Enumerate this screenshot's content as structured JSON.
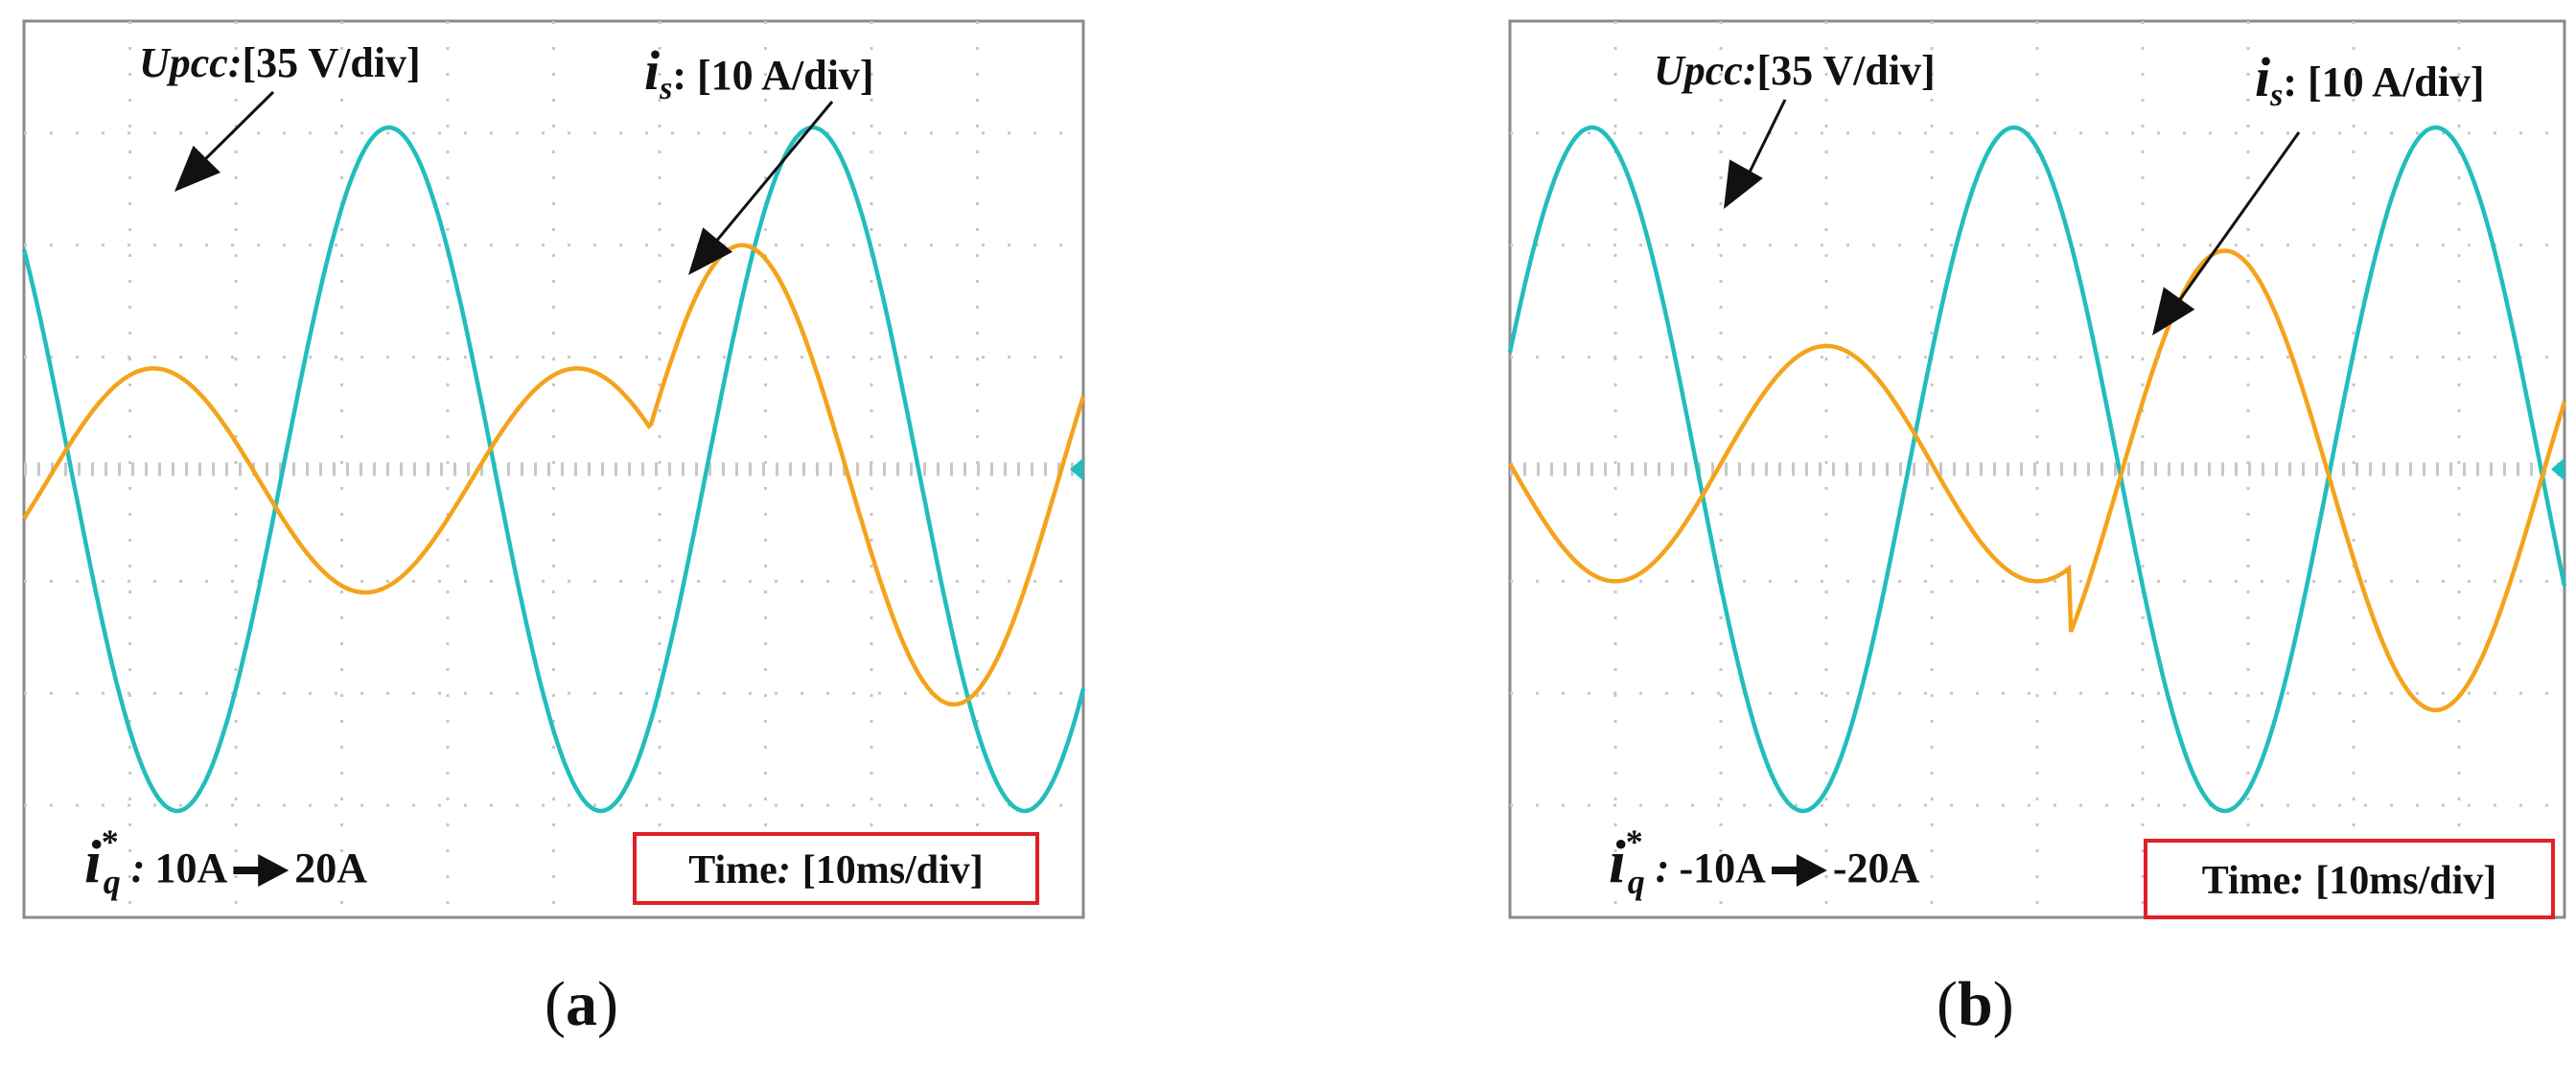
{
  "colors": {
    "voltage": "#22bdbd",
    "current": "#f4a31b",
    "frame": "#8a8a8a",
    "grid": "#c7c7c7",
    "highlight": "#e21f26",
    "text": "#111111"
  },
  "chart_data": [
    {
      "type": "line",
      "panel": "a",
      "caption_open": "(",
      "caption_letter": "a",
      "caption_close": ")",
      "x_divisions": 10,
      "y_divisions": 8,
      "xlim": [
        0,
        100
      ],
      "ylim": [
        -4,
        4
      ],
      "time_label_prefix": "Time",
      "time_label_colon": ":",
      "time_label_value": "[10ms/div]",
      "voltage_label_name": "Upcc:",
      "voltage_label_scale": "[35 V/div]",
      "current_label_name": "i",
      "current_label_sub": "s",
      "current_label_scale": ": [10 A/div]",
      "ref_label_name": "i",
      "ref_label_sup": "*",
      "ref_label_sub": "q",
      "ref_label_colon": " :",
      "ref_from": "10A",
      "ref_to": "20A",
      "series": [
        {
          "name": "Upcc",
          "amplitude": 3.05,
          "offset": 0.0,
          "period_ms": 40,
          "phase_deg": 140
        },
        {
          "name": "is",
          "segments": [
            {
              "t_start": 0,
              "t_end": 59,
              "amplitude": 1.0,
              "offset": -0.1,
              "phase_deg": -20
            },
            {
              "t_start": 59,
              "t_end": 100,
              "amplitude": 2.05,
              "offset": -0.05,
              "phase_deg": 200
            }
          ],
          "period_ms": 40
        }
      ]
    },
    {
      "type": "line",
      "panel": "b",
      "caption_open": "(",
      "caption_letter": "b",
      "caption_close": ")",
      "x_divisions": 10,
      "y_divisions": 8,
      "xlim": [
        0,
        100
      ],
      "ylim": [
        -4,
        4
      ],
      "time_label_prefix": "Time",
      "time_label_colon": ":",
      "time_label_value": "[10ms/div]",
      "voltage_label_name": "Upcc:",
      "voltage_label_scale": "[35 V/div]",
      "current_label_name": "i",
      "current_label_sub": "s",
      "current_label_scale": ": [10 A/div]",
      "ref_label_name": "i",
      "ref_label_sup": "*",
      "ref_label_sub": "q",
      "ref_label_colon": " :",
      "ref_from": "-10A",
      "ref_to": "-20A",
      "series": [
        {
          "name": "Upcc",
          "amplitude": 3.05,
          "offset": 0.0,
          "period_ms": 40,
          "phase_deg": 20
        },
        {
          "name": "is",
          "segments": [
            {
              "t_start": 0,
              "t_end": 53,
              "amplitude": 1.05,
              "offset": 0.05,
              "phase_deg": 180
            },
            {
              "t_start": 53,
              "t_end": 100,
              "amplitude": 2.05,
              "offset": -0.1,
              "phase_deg": 200
            }
          ],
          "period_ms": 40
        }
      ]
    }
  ]
}
